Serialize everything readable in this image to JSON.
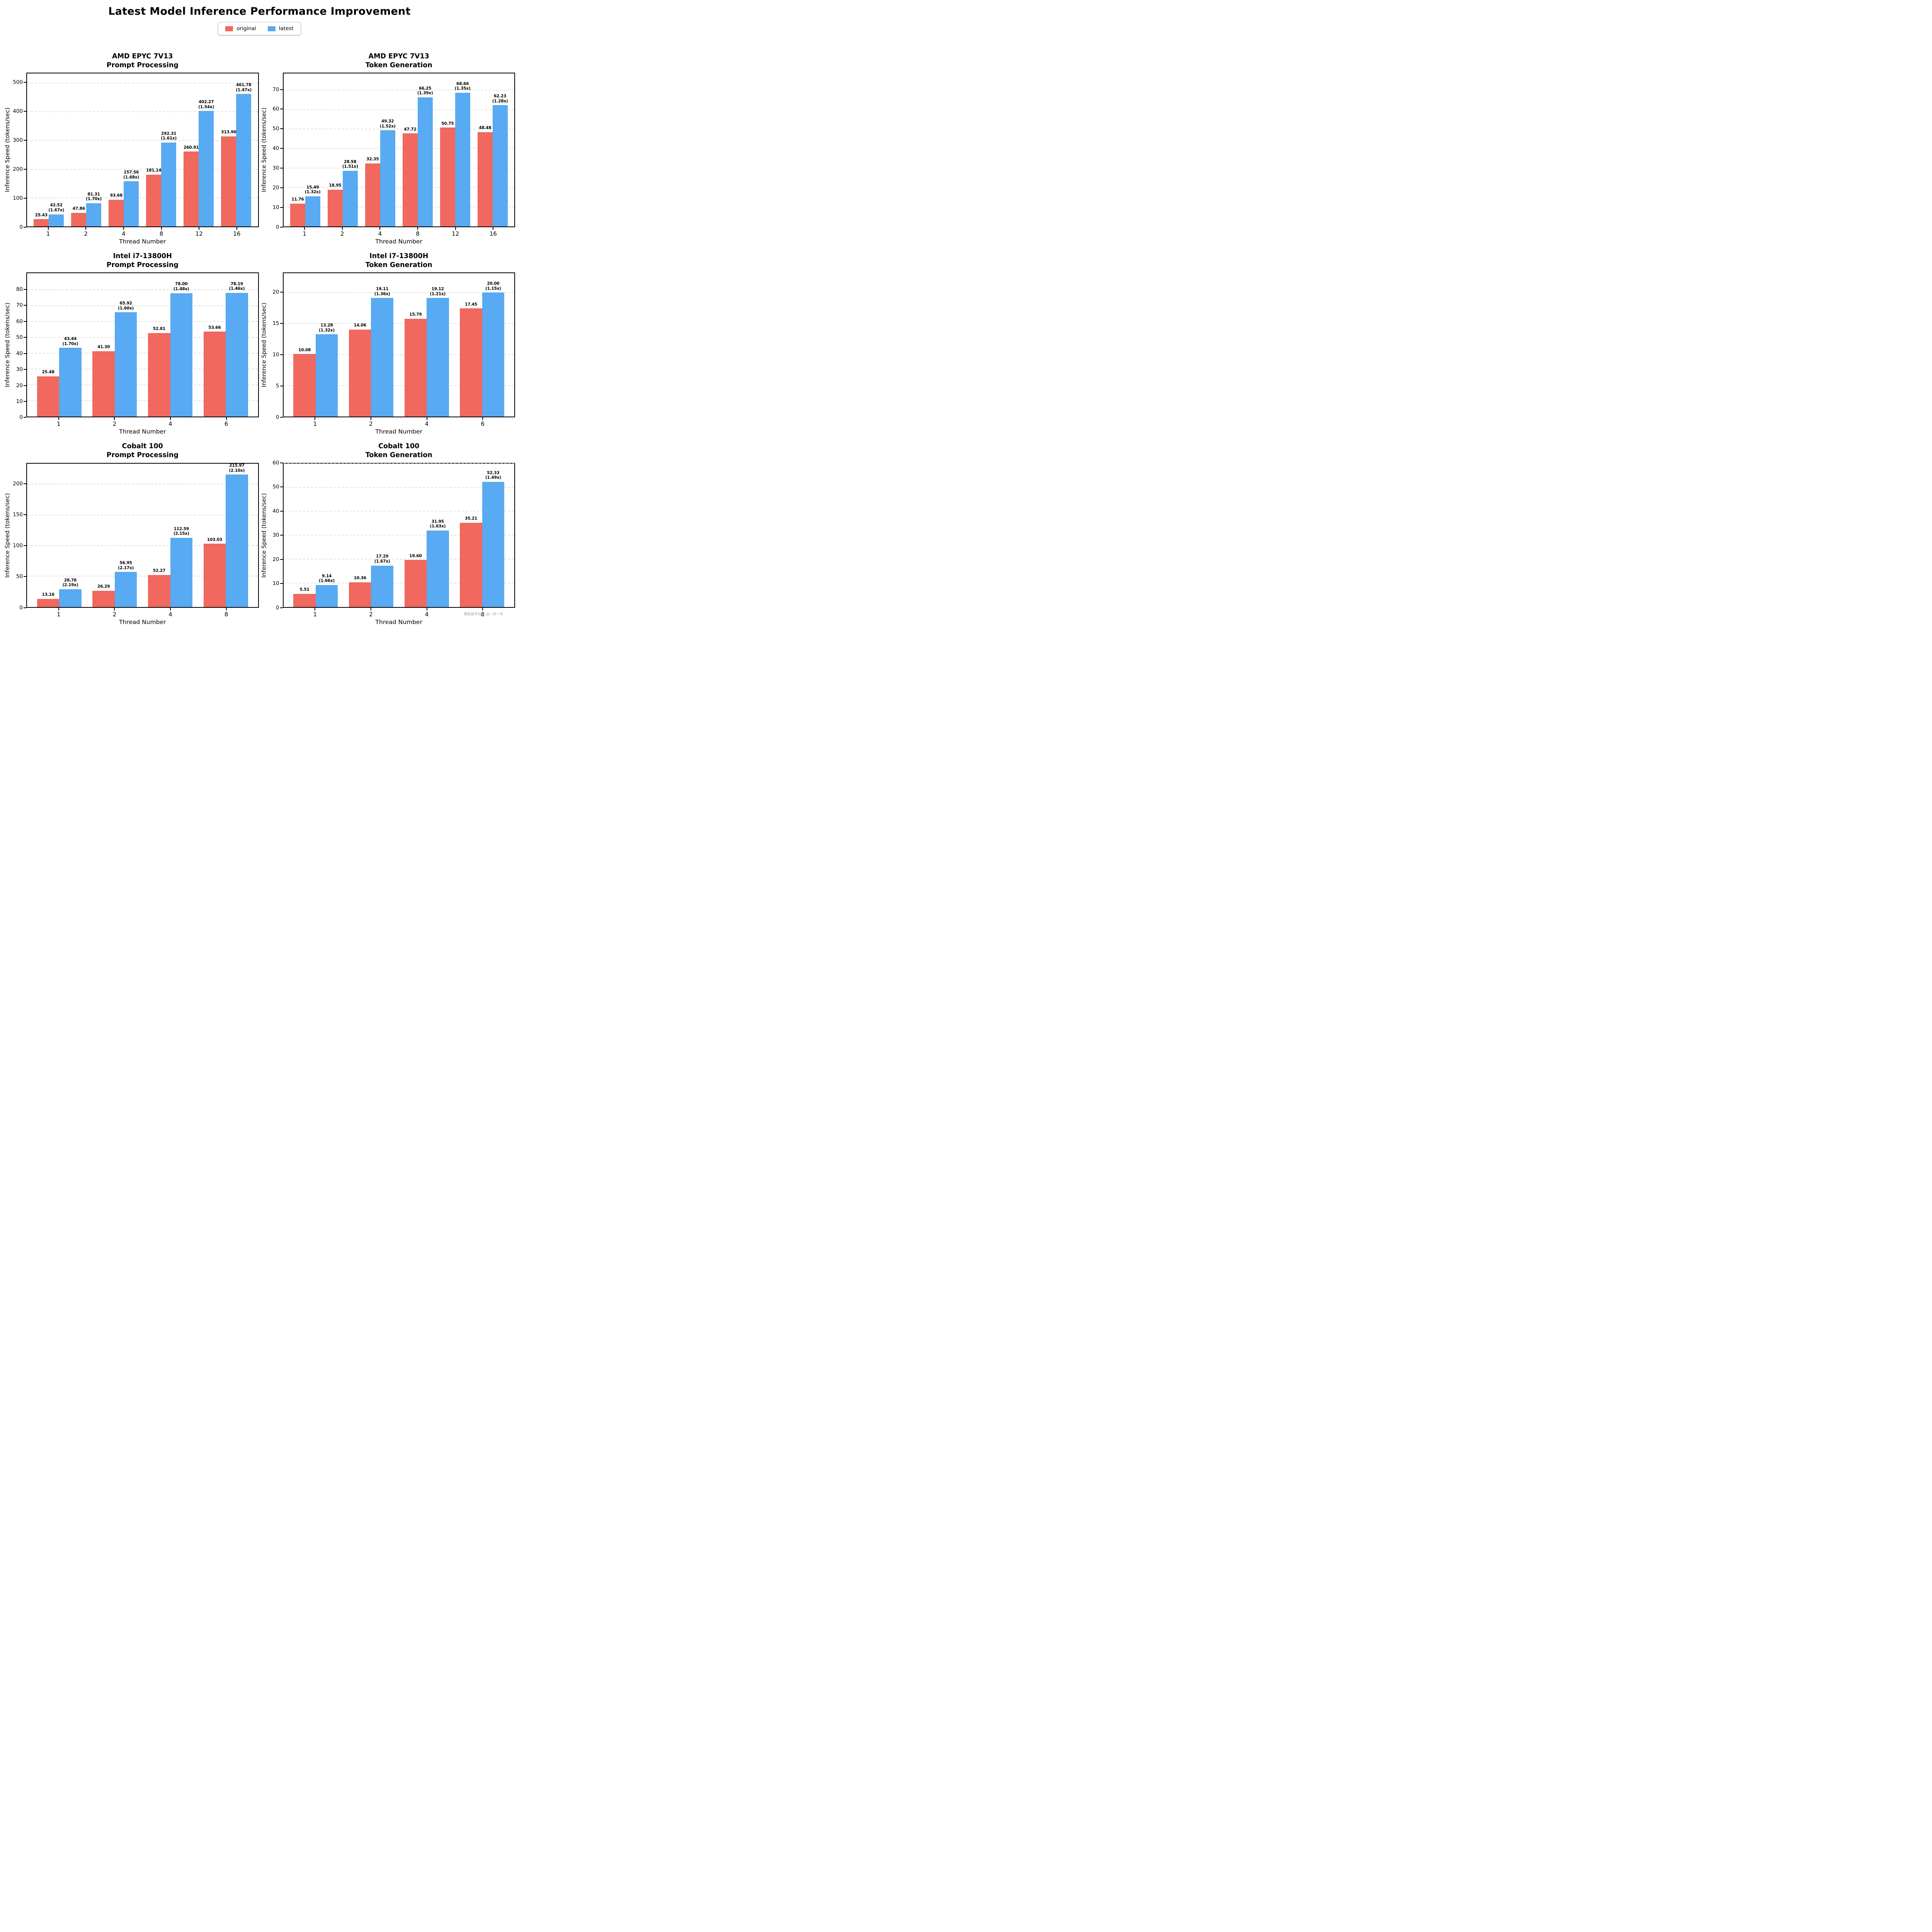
{
  "page": {
    "title": "Latest Model Inference Performance Improvement",
    "watermark": "掘金技术社区 @一点一木"
  },
  "legend": {
    "position": "top",
    "items": [
      {
        "name": "original",
        "label": "original",
        "color": "#f0685e"
      },
      {
        "name": "latest",
        "label": "latest",
        "color": "#58aaf2"
      }
    ]
  },
  "chart_data": [
    {
      "type": "bar",
      "title_lines": [
        "AMD EPYC 7V13",
        "Prompt Processing"
      ],
      "xlabel": "Thread Number",
      "ylabel": "Inference Speed (tokens/sec)",
      "categories": [
        "1",
        "2",
        "4",
        "8",
        "12",
        "16"
      ],
      "yticks": [
        0,
        100,
        200,
        300,
        400,
        500
      ],
      "ylim": [
        0,
        533
      ],
      "grid": true,
      "series": [
        {
          "name": "original",
          "values": [
            25.43,
            47.86,
            93.68,
            181.14,
            260.91,
            313.9
          ]
        },
        {
          "name": "latest",
          "values": [
            42.52,
            81.31,
            157.56,
            292.31,
            402.27,
            461.78
          ],
          "ratios": [
            "1.67x",
            "1.70x",
            "1.68x",
            "1.61x",
            "1.54x",
            "1.47x"
          ]
        }
      ]
    },
    {
      "type": "bar",
      "title_lines": [
        "AMD EPYC 7V13",
        "Token Generation"
      ],
      "xlabel": "Thread Number",
      "ylabel": "Inference Speed (tokens/sec)",
      "categories": [
        "1",
        "2",
        "4",
        "8",
        "12",
        "16"
      ],
      "yticks": [
        0,
        10,
        20,
        30,
        40,
        50,
        60,
        70
      ],
      "ylim": [
        0,
        78.5
      ],
      "grid": true,
      "series": [
        {
          "name": "original",
          "values": [
            11.76,
            18.95,
            32.35,
            47.72,
            50.75,
            48.48
          ]
        },
        {
          "name": "latest",
          "values": [
            15.49,
            28.58,
            49.32,
            66.25,
            68.66,
            62.23
          ],
          "ratios": [
            "1.32x",
            "1.51x",
            "1.52x",
            "1.39x",
            "1.35x",
            "1.28x"
          ]
        }
      ]
    },
    {
      "type": "bar",
      "title_lines": [
        "Intel i7-13800H",
        "Prompt Processing"
      ],
      "xlabel": "Thread Number",
      "ylabel": "Inference Speed (tokens/sec)",
      "categories": [
        "1",
        "2",
        "4",
        "6"
      ],
      "yticks": [
        0,
        10,
        20,
        30,
        40,
        50,
        60,
        70,
        80
      ],
      "ylim": [
        0,
        90.5
      ],
      "grid": true,
      "series": [
        {
          "name": "original",
          "values": [
            25.48,
            41.3,
            52.81,
            53.66
          ]
        },
        {
          "name": "latest",
          "values": [
            43.44,
            65.92,
            78.0,
            78.19
          ],
          "ratios": [
            "1.70x",
            "1.60x",
            "1.48x",
            "1.46x"
          ]
        }
      ]
    },
    {
      "type": "bar",
      "title_lines": [
        "Intel i7-13800H",
        "Token Generation"
      ],
      "xlabel": "Thread Number",
      "ylabel": "Inference Speed (tokens/sec)",
      "categories": [
        "1",
        "2",
        "4",
        "6"
      ],
      "yticks": [
        0,
        5,
        10,
        15,
        20
      ],
      "ylim": [
        0,
        23.1
      ],
      "grid": true,
      "series": [
        {
          "name": "original",
          "values": [
            10.08,
            14.06,
            15.79,
            17.45
          ]
        },
        {
          "name": "latest",
          "values": [
            13.28,
            19.11,
            19.12,
            20.0
          ],
          "ratios": [
            "1.32x",
            "1.36x",
            "1.21x",
            "1.15x"
          ]
        }
      ]
    },
    {
      "type": "bar",
      "title_lines": [
        "Cobalt 100",
        "Prompt Processing"
      ],
      "xlabel": "Thread Number",
      "ylabel": "Inference Speed (tokens/sec)",
      "categories": [
        "1",
        "2",
        "4",
        "8"
      ],
      "yticks": [
        0,
        50,
        100,
        150,
        200
      ],
      "ylim": [
        0,
        234
      ],
      "grid": true,
      "series": [
        {
          "name": "original",
          "values": [
            13.16,
            26.29,
            52.27,
            103.03
          ]
        },
        {
          "name": "latest",
          "values": [
            28.76,
            56.95,
            112.59,
            215.97
          ],
          "ratios": [
            "2.19x",
            "2.17x",
            "2.15x",
            "2.10x"
          ]
        }
      ]
    },
    {
      "type": "bar",
      "title_lines": [
        "Cobalt 100",
        "Token Generation"
      ],
      "xlabel": "Thread Number",
      "ylabel": "Inference Speed (tokens/sec)",
      "categories": [
        "1",
        "2",
        "4",
        "8"
      ],
      "yticks": [
        0,
        10,
        20,
        30,
        40,
        50,
        60
      ],
      "ylim": [
        0,
        60
      ],
      "grid": true,
      "series": [
        {
          "name": "original",
          "values": [
            5.51,
            10.36,
            19.6,
            35.21
          ]
        },
        {
          "name": "latest",
          "values": [
            9.14,
            17.29,
            31.95,
            52.33
          ],
          "ratios": [
            "1.66x",
            "1.67x",
            "1.63x",
            "1.49x"
          ]
        }
      ]
    }
  ]
}
